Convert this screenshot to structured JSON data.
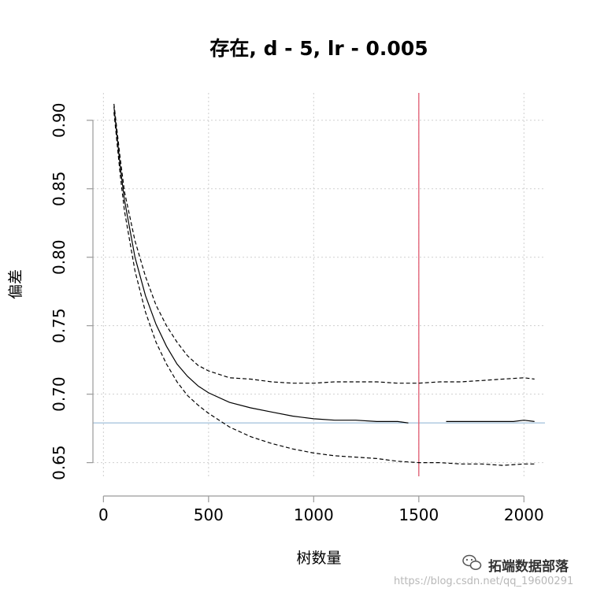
{
  "chart_data": {
    "type": "line",
    "title": "存在, d - 5, lr - 0.005",
    "xlabel": "树数量",
    "ylabel": "偏差",
    "xlim": [
      -50,
      2100
    ],
    "ylim": [
      0.64,
      0.92
    ],
    "x_ticks": [
      0,
      500,
      1000,
      1500,
      2000
    ],
    "x_tick_labels": [
      "0",
      "500",
      "1000",
      "1500",
      "2000"
    ],
    "y_ticks": [
      0.65,
      0.7,
      0.75,
      0.8,
      0.85,
      0.9
    ],
    "y_tick_labels": [
      "0.65",
      "0.70",
      "0.75",
      "0.80",
      "0.85",
      "0.90"
    ],
    "grid": true,
    "vline": {
      "x": 1500,
      "color": "#e05a70"
    },
    "hline": {
      "y": 0.679,
      "color": "#a9c6de"
    },
    "series": [
      {
        "style": "dashed",
        "x": [
          50,
          80,
          100,
          150,
          200,
          250,
          300,
          350,
          400,
          450,
          500,
          600,
          700,
          800,
          900,
          1000,
          1100,
          1200,
          1300,
          1400,
          1500,
          1600,
          1700,
          1800,
          1900,
          2000,
          2050
        ],
        "y": [
          0.912,
          0.872,
          0.848,
          0.812,
          0.786,
          0.765,
          0.75,
          0.738,
          0.728,
          0.721,
          0.717,
          0.712,
          0.711,
          0.709,
          0.708,
          0.708,
          0.709,
          0.709,
          0.709,
          0.708,
          0.708,
          0.709,
          0.709,
          0.71,
          0.711,
          0.712,
          0.711
        ]
      },
      {
        "style": "solid",
        "x": [
          50,
          80,
          100,
          150,
          200,
          250,
          300,
          350,
          400,
          450,
          500,
          600,
          700,
          800,
          900,
          1000,
          1100,
          1200,
          1300,
          1400,
          1450,
          1630,
          1700,
          1800,
          1900,
          1950,
          2000,
          2050
        ],
        "y": [
          0.91,
          0.866,
          0.842,
          0.8,
          0.772,
          0.751,
          0.735,
          0.722,
          0.713,
          0.706,
          0.701,
          0.694,
          0.69,
          0.687,
          0.684,
          0.682,
          0.681,
          0.681,
          0.68,
          0.68,
          0.679,
          0.68,
          0.68,
          0.68,
          0.68,
          0.68,
          0.681,
          0.68
        ]
      },
      {
        "style": "dashed",
        "x": [
          50,
          80,
          100,
          150,
          200,
          250,
          300,
          350,
          400,
          450,
          500,
          600,
          700,
          800,
          900,
          1000,
          1100,
          1200,
          1300,
          1400,
          1500,
          1600,
          1700,
          1800,
          1900,
          2000,
          2050
        ],
        "y": [
          0.906,
          0.86,
          0.834,
          0.79,
          0.76,
          0.738,
          0.722,
          0.709,
          0.699,
          0.692,
          0.686,
          0.676,
          0.669,
          0.664,
          0.66,
          0.657,
          0.655,
          0.654,
          0.653,
          0.651,
          0.65,
          0.65,
          0.649,
          0.649,
          0.648,
          0.649,
          0.649
        ]
      }
    ]
  },
  "watermark": {
    "brand": "拓端数据部落",
    "url": "https://blog.csdn.net/qq_19600291",
    "icon": "wechat-icon"
  }
}
